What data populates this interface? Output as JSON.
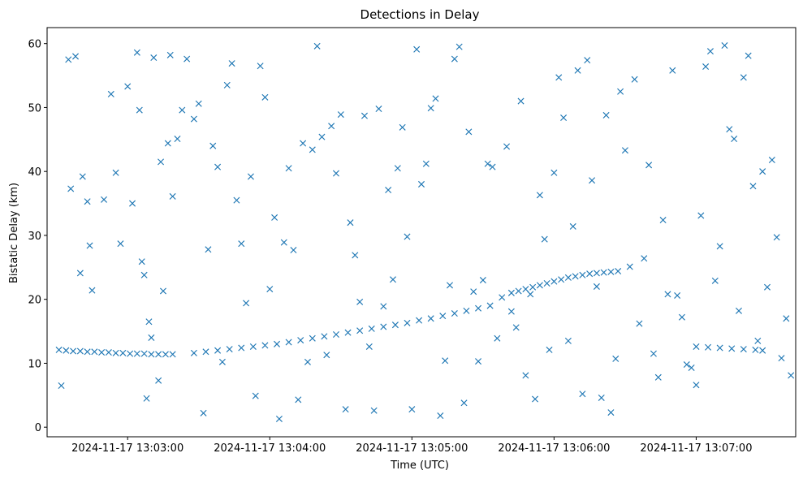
{
  "chart_data": {
    "type": "scatter",
    "title": "Detections in Delay",
    "xlabel": "Time (UTC)",
    "ylabel": "Bistatic Delay (km)",
    "marker": "x",
    "color": "#1f77b4",
    "grid": false,
    "x_range_seconds_after_13_02_30": [
      -4,
      312
    ],
    "ylim": [
      -1.5,
      62.5
    ],
    "x_ticks": [
      {
        "label": "2024-11-17 13:03:00",
        "time": "2024-11-17 13:03:00"
      },
      {
        "label": "2024-11-17 13:04:00",
        "time": "2024-11-17 13:04:00"
      },
      {
        "label": "2024-11-17 13:05:00",
        "time": "2024-11-17 13:05:00"
      },
      {
        "label": "2024-11-17 13:06:00",
        "time": "2024-11-17 13:06:00"
      },
      {
        "label": "2024-11-17 13:07:00",
        "time": "2024-11-17 13:07:00"
      }
    ],
    "y_ticks": [
      0,
      10,
      20,
      30,
      40,
      50,
      60
    ],
    "track_series": [
      {
        "x": [
          "13:02:31",
          "13:02:34",
          "13:02:37",
          "13:02:40",
          "13:02:43",
          "13:02:46",
          "13:02:49",
          "13:02:52",
          "13:02:55",
          "13:02:58",
          "13:03:01",
          "13:03:04",
          "13:03:07",
          "13:03:10",
          "13:03:13",
          "13:03:16",
          "13:03:19"
        ],
        "y": [
          12.1,
          12.0,
          11.9,
          11.9,
          11.8,
          11.8,
          11.7,
          11.7,
          11.6,
          11.6,
          11.5,
          11.5,
          11.5,
          11.4,
          11.4,
          11.4,
          11.4
        ]
      },
      {
        "x": [
          "13:03:28",
          "13:03:33",
          "13:03:38",
          "13:03:43",
          "13:03:48",
          "13:03:53",
          "13:03:58",
          "13:04:03",
          "13:04:08",
          "13:04:13",
          "13:04:18",
          "13:04:23",
          "13:04:28",
          "13:04:33",
          "13:04:38",
          "13:04:43",
          "13:04:48",
          "13:04:53",
          "13:04:58",
          "13:05:03",
          "13:05:08",
          "13:05:13",
          "13:05:18",
          "13:05:23",
          "13:05:28",
          "13:05:33"
        ],
        "y": [
          11.6,
          11.8,
          12.0,
          12.2,
          12.4,
          12.6,
          12.8,
          13.0,
          13.3,
          13.6,
          13.9,
          14.2,
          14.5,
          14.8,
          15.1,
          15.4,
          15.7,
          16.0,
          16.3,
          16.7,
          17.0,
          17.4,
          17.8,
          18.2,
          18.6,
          19.0
        ]
      },
      {
        "x": [
          "13:05:42",
          "13:05:45",
          "13:05:48",
          "13:05:51",
          "13:05:54",
          "13:05:57",
          "13:06:00",
          "13:06:03",
          "13:06:06",
          "13:06:09",
          "13:06:12",
          "13:06:15",
          "13:06:18",
          "13:06:21",
          "13:06:24",
          "13:06:27"
        ],
        "y": [
          21.0,
          21.3,
          21.6,
          21.9,
          22.2,
          22.5,
          22.8,
          23.1,
          23.4,
          23.6,
          23.8,
          24.0,
          24.1,
          24.2,
          24.3,
          24.4
        ]
      },
      {
        "x": [
          "13:07:00",
          "13:07:05",
          "13:07:10",
          "13:07:15",
          "13:07:20",
          "13:07:25",
          "13:07:28"
        ],
        "y": [
          12.6,
          12.5,
          12.4,
          12.3,
          12.2,
          12.1,
          12.0
        ]
      }
    ],
    "clutter_series": {
      "x": [
        "13:02:32",
        "13:02:35",
        "13:02:36",
        "13:02:38",
        "13:02:40",
        "13:02:41",
        "13:02:43",
        "13:02:44",
        "13:02:45",
        "13:02:50",
        "13:02:53",
        "13:02:55",
        "13:02:57",
        "13:03:00",
        "13:03:02",
        "13:03:04",
        "13:03:05",
        "13:03:06",
        "13:03:07",
        "13:03:08",
        "13:03:09",
        "13:03:10",
        "13:03:11",
        "13:03:13",
        "13:03:14",
        "13:03:15",
        "13:03:17",
        "13:03:18",
        "13:03:19",
        "13:03:21",
        "13:03:23",
        "13:03:25",
        "13:03:28",
        "13:03:30",
        "13:03:32",
        "13:03:34",
        "13:03:36",
        "13:03:38",
        "13:03:40",
        "13:03:42",
        "13:03:44",
        "13:03:46",
        "13:03:48",
        "13:03:50",
        "13:03:52",
        "13:03:54",
        "13:03:56",
        "13:03:58",
        "13:04:00",
        "13:04:02",
        "13:04:04",
        "13:04:06",
        "13:04:08",
        "13:04:10",
        "13:04:12",
        "13:04:14",
        "13:04:16",
        "13:04:18",
        "13:04:20",
        "13:04:22",
        "13:04:24",
        "13:04:26",
        "13:04:28",
        "13:04:30",
        "13:04:32",
        "13:04:34",
        "13:04:36",
        "13:04:38",
        "13:04:40",
        "13:04:42",
        "13:04:44",
        "13:04:46",
        "13:04:48",
        "13:04:50",
        "13:04:52",
        "13:04:54",
        "13:04:56",
        "13:04:58",
        "13:05:00",
        "13:05:02",
        "13:05:04",
        "13:05:06",
        "13:05:08",
        "13:05:10",
        "13:05:12",
        "13:05:14",
        "13:05:16",
        "13:05:18",
        "13:05:20",
        "13:05:22",
        "13:05:24",
        "13:05:26",
        "13:05:28",
        "13:05:30",
        "13:05:32",
        "13:05:34",
        "13:05:36",
        "13:05:38",
        "13:05:40",
        "13:05:42",
        "13:05:44",
        "13:05:46",
        "13:05:48",
        "13:05:50",
        "13:05:52",
        "13:05:54",
        "13:05:56",
        "13:05:58",
        "13:06:00",
        "13:06:02",
        "13:06:04",
        "13:06:06",
        "13:06:08",
        "13:06:10",
        "13:06:12",
        "13:06:14",
        "13:06:16",
        "13:06:18",
        "13:06:20",
        "13:06:22",
        "13:06:24",
        "13:06:26",
        "13:06:28",
        "13:06:30",
        "13:06:32",
        "13:06:34",
        "13:06:36",
        "13:06:38",
        "13:06:40",
        "13:06:42",
        "13:06:44",
        "13:06:46",
        "13:06:48",
        "13:06:50",
        "13:06:52",
        "13:06:54",
        "13:06:56",
        "13:06:58",
        "13:07:00",
        "13:07:02",
        "13:07:04",
        "13:07:06",
        "13:07:08",
        "13:07:10",
        "13:07:12",
        "13:07:14",
        "13:07:16",
        "13:07:18",
        "13:07:20",
        "13:07:22",
        "13:07:24",
        "13:07:26",
        "13:07:28",
        "13:07:30",
        "13:07:32",
        "13:07:34",
        "13:07:36",
        "13:07:38",
        "13:07:40"
      ],
      "y": [
        6.5,
        57.5,
        37.3,
        58.0,
        24.1,
        39.2,
        35.3,
        28.4,
        21.4,
        35.6,
        52.1,
        39.8,
        28.7,
        53.3,
        35.0,
        58.6,
        49.6,
        25.9,
        23.8,
        4.5,
        16.5,
        14.0,
        57.8,
        7.3,
        41.5,
        21.3,
        44.4,
        58.2,
        36.1,
        45.1,
        49.6,
        57.6,
        48.2,
        50.6,
        2.2,
        27.8,
        44.0,
        40.7,
        10.2,
        53.5,
        56.9,
        35.5,
        28.7,
        19.4,
        39.2,
        4.9,
        56.5,
        51.6,
        21.6,
        32.8,
        1.3,
        28.9,
        40.5,
        27.7,
        4.3,
        44.4,
        10.2,
        43.4,
        59.6,
        45.4,
        11.3,
        47.1,
        39.7,
        48.9,
        2.8,
        32.0,
        26.9,
        19.6,
        48.7,
        12.6,
        2.6,
        49.8,
        18.9,
        37.1,
        23.1,
        40.5,
        46.9,
        29.8,
        2.8,
        59.1,
        38.0,
        41.2,
        49.9,
        51.4,
        1.8,
        10.4,
        22.2,
        57.6,
        59.5,
        3.8,
        46.2,
        21.2,
        10.3,
        23.0,
        41.2,
        40.7,
        13.9,
        20.3,
        43.9,
        18.1,
        15.6,
        51.0,
        8.1,
        20.8,
        4.4,
        36.3,
        29.4,
        12.1,
        39.8,
        54.7,
        48.4,
        13.5,
        31.4,
        55.8,
        5.2,
        57.4,
        38.6,
        22.0,
        4.6,
        48.8,
        2.3,
        10.7,
        52.5,
        43.3,
        25.1,
        54.4,
        16.2,
        26.4,
        41.0,
        11.5,
        7.8,
        32.4,
        20.8,
        55.8,
        20.6,
        17.2,
        9.8,
        9.3,
        6.6,
        33.1,
        56.4,
        58.8,
        22.9,
        28.3,
        59.7,
        46.6,
        45.1,
        18.2,
        54.7,
        58.1,
        37.7,
        13.5,
        40.0,
        21.9,
        41.8,
        29.7,
        10.8,
        17.0,
        8.1
      ]
    }
  }
}
